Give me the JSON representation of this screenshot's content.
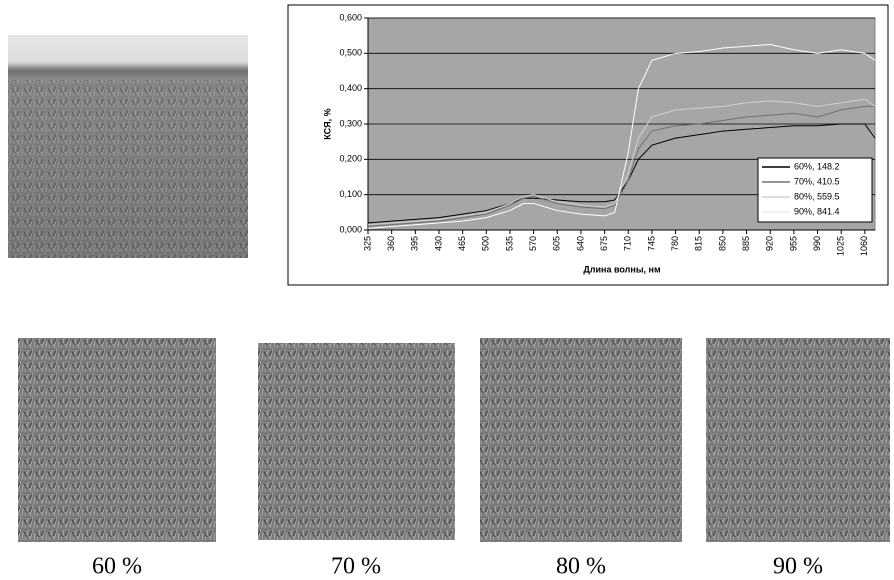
{
  "chart_data": {
    "type": "line",
    "y_label": "КСЯ, %",
    "x_label": "Длина волны, нм",
    "x": [
      325,
      360,
      395,
      430,
      465,
      500,
      535,
      555,
      570,
      605,
      640,
      675,
      690,
      710,
      725,
      745,
      780,
      815,
      850,
      885,
      920,
      955,
      990,
      1025,
      1060,
      1075
    ],
    "series": [
      {
        "name": "60%, 148.2",
        "color": "#000000",
        "values": [
          0.02,
          0.025,
          0.03,
          0.035,
          0.045,
          0.055,
          0.075,
          0.09,
          0.09,
          0.085,
          0.08,
          0.08,
          0.085,
          0.14,
          0.2,
          0.24,
          0.26,
          0.27,
          0.28,
          0.285,
          0.29,
          0.295,
          0.295,
          0.3,
          0.3,
          0.26
        ]
      },
      {
        "name": "70%, 410.5",
        "color": "#707070",
        "values": [
          0.01,
          0.015,
          0.02,
          0.025,
          0.035,
          0.045,
          0.07,
          0.09,
          0.095,
          0.075,
          0.065,
          0.06,
          0.07,
          0.14,
          0.23,
          0.28,
          0.295,
          0.3,
          0.31,
          0.32,
          0.325,
          0.33,
          0.32,
          0.34,
          0.35,
          0.35
        ]
      },
      {
        "name": "80%, 559.5",
        "color": "#d0d0d0",
        "values": [
          0.015,
          0.02,
          0.025,
          0.03,
          0.04,
          0.05,
          0.075,
          0.095,
          0.1,
          0.08,
          0.07,
          0.065,
          0.075,
          0.16,
          0.26,
          0.32,
          0.34,
          0.345,
          0.35,
          0.36,
          0.365,
          0.36,
          0.35,
          0.36,
          0.37,
          0.35
        ]
      },
      {
        "name": "90%, 841.4",
        "color": "#ffffff",
        "values": [
          0.005,
          0.01,
          0.015,
          0.02,
          0.025,
          0.035,
          0.055,
          0.075,
          0.075,
          0.055,
          0.045,
          0.04,
          0.05,
          0.22,
          0.4,
          0.48,
          0.5,
          0.505,
          0.515,
          0.52,
          0.525,
          0.51,
          0.5,
          0.51,
          0.5,
          0.48
        ]
      }
    ],
    "xlim": [
      325,
      1075
    ],
    "xticks": [
      325,
      360,
      395,
      430,
      465,
      500,
      535,
      570,
      605,
      640,
      675,
      710,
      745,
      780,
      815,
      850,
      885,
      920,
      955,
      990,
      1025,
      1060
    ],
    "ylim": [
      0,
      0.6
    ],
    "yticks": [
      {
        "value": 0,
        "label": "0,000"
      },
      {
        "value": 0.1,
        "label": "0,100"
      },
      {
        "value": 0.2,
        "label": "0,200"
      },
      {
        "value": 0.3,
        "label": "0,300"
      },
      {
        "value": 0.4,
        "label": "0,400"
      },
      {
        "value": 0.5,
        "label": "0,500"
      },
      {
        "value": 0.6,
        "label": "0,600"
      }
    ],
    "grid": true,
    "legend": "lower-right",
    "plot_background": "#a6a6a6"
  },
  "captions": [
    "60 %",
    "70 %",
    "80 %",
    "90 %"
  ]
}
